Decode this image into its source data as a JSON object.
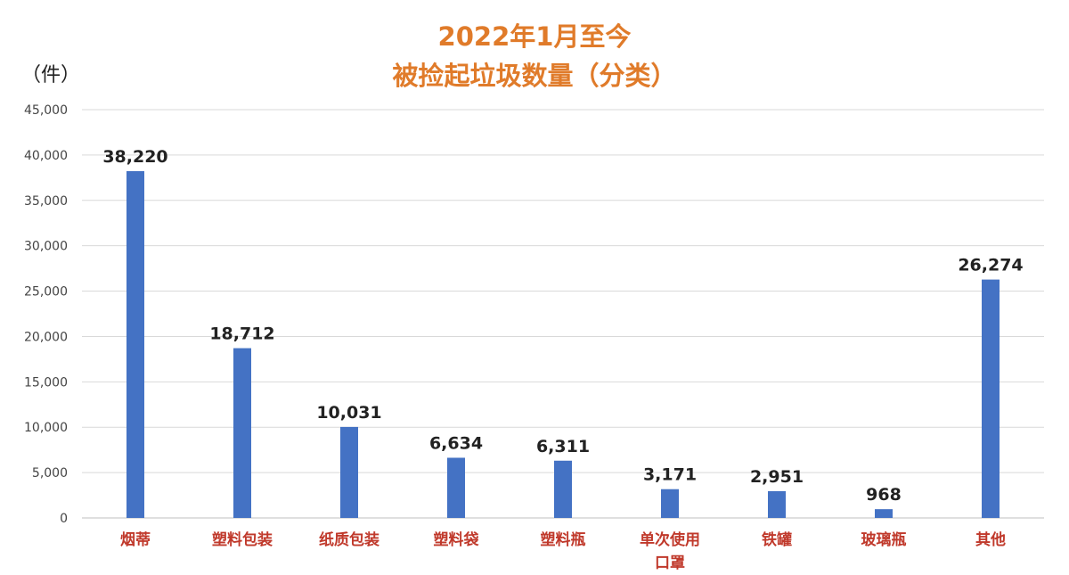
{
  "colors": {
    "title": "#e07b2a",
    "bar": "#4472c4",
    "category_label": "#c0392b",
    "grid": "#d9d9d9",
    "axis": "#bfbfbf"
  },
  "chart_data": {
    "type": "bar",
    "title_line1": "2022年1月至今",
    "title_line2": "被捡起垃圾数量（分类）",
    "ylabel": "（件）",
    "xlabel": "",
    "ylim": [
      0,
      45000
    ],
    "yticks": [
      0,
      5000,
      10000,
      15000,
      20000,
      25000,
      30000,
      35000,
      40000,
      45000
    ],
    "ytick_labels": [
      "0",
      "5,000",
      "10,000",
      "15,000",
      "20,000",
      "25,000",
      "30,000",
      "35,000",
      "40,000",
      "45,000"
    ],
    "grid": true,
    "legend": "none",
    "categories": [
      [
        "烟蒂"
      ],
      [
        "塑料包装"
      ],
      [
        "纸质包装"
      ],
      [
        "塑料袋"
      ],
      [
        "塑料瓶"
      ],
      [
        "单次使用",
        "口罩"
      ],
      [
        "铁罐"
      ],
      [
        "玻璃瓶"
      ],
      [
        "其他"
      ]
    ],
    "values": [
      38220,
      18712,
      10031,
      6634,
      6311,
      3171,
      2951,
      968,
      26274
    ],
    "data_labels": [
      "38,220",
      "18,712",
      "10,031",
      "6,634",
      "6,311",
      "3,171",
      "2,951",
      "968",
      "26,274"
    ]
  }
}
